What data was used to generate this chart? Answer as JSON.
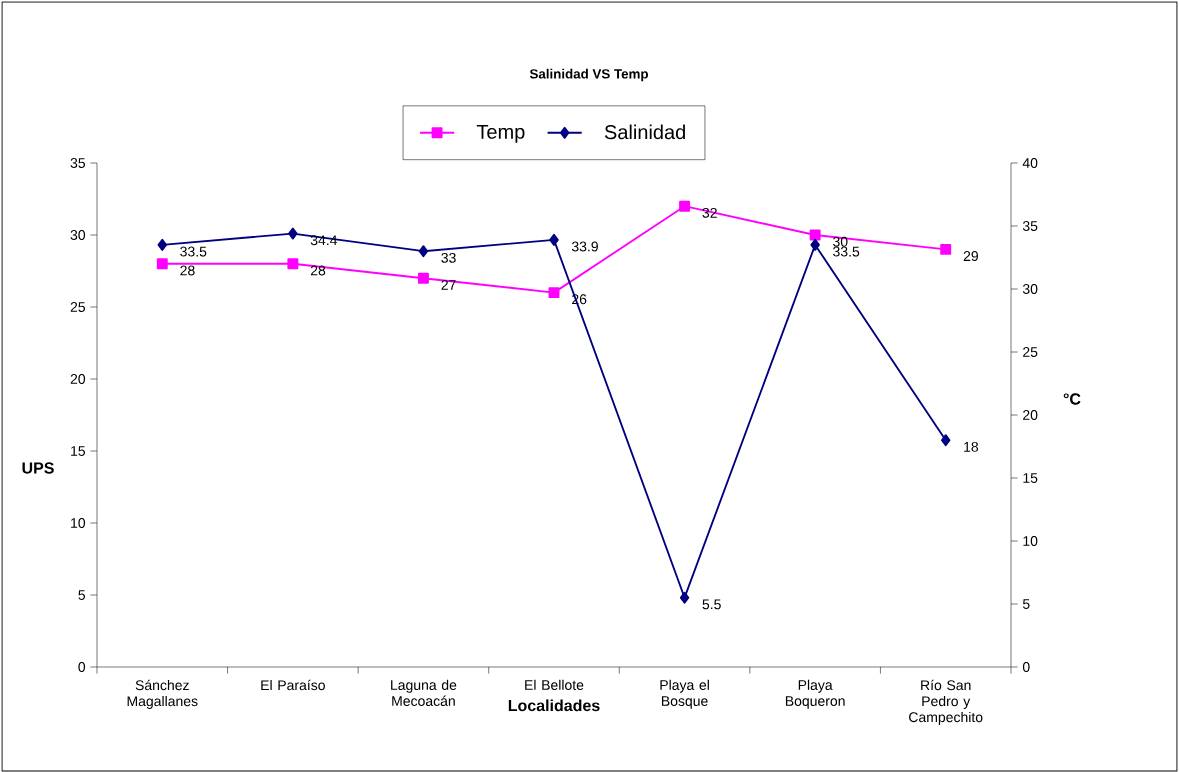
{
  "chart_data": {
    "type": "line",
    "title": "Salinidad VS Temp",
    "xlabel": "Localidades",
    "ylabel": "UPS",
    "y2label": "°C",
    "categories": [
      "Sánchez Magallanes",
      "El Paraíso",
      "Laguna de Mecoacán",
      "El Bellote",
      "Playa el Bosque",
      "Playa Boqueron",
      "Río San Pedro y Campechito"
    ],
    "series": [
      {
        "name": "Temp",
        "color": "#ff00ff",
        "marker": "square",
        "values": [
          28,
          28,
          27,
          26,
          32,
          30,
          29
        ]
      },
      {
        "name": "Salinidad",
        "color": "#000080",
        "marker": "diamond",
        "axis": "y2",
        "values": [
          33.5,
          34.4,
          33,
          33.9,
          5.5,
          33.5,
          18
        ]
      }
    ],
    "ylim": [
      0,
      35
    ],
    "yticks": [
      0,
      5,
      10,
      15,
      20,
      25,
      30,
      35
    ],
    "y2lim": [
      0,
      40
    ],
    "y2ticks": [
      0,
      5,
      10,
      15,
      20,
      25,
      30,
      35,
      40
    ],
    "data_labels": true,
    "legend": "top",
    "grid": false
  }
}
